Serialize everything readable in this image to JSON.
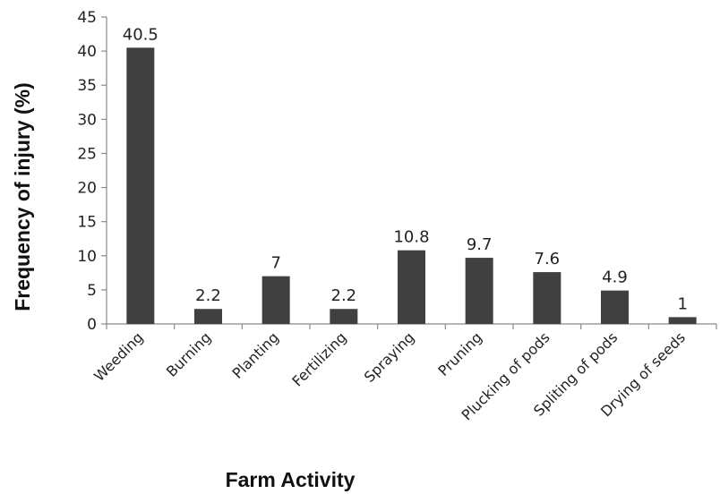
{
  "chart_data": {
    "type": "bar",
    "title": "",
    "xlabel": "Farm Activity",
    "ylabel": "Frequency of injury (%)",
    "categories": [
      "Weeding",
      "Burning",
      "Planting",
      "Fertilizing",
      "Spraying",
      "Pruning",
      "Plucking of pods",
      "Spliting of pods",
      "Drying of seeds"
    ],
    "values": [
      40.5,
      2.2,
      7,
      2.2,
      10.8,
      9.7,
      7.6,
      4.9,
      1
    ],
    "data_labels": [
      "40.5",
      "2.2",
      "7",
      "2.2",
      "10.8",
      "9.7",
      "7.6",
      "4.9",
      "1"
    ],
    "yticks": [
      "0",
      "5",
      "10",
      "15",
      "20",
      "25",
      "30",
      "35",
      "40",
      "45"
    ],
    "ylim": [
      0,
      45
    ],
    "grid": false,
    "legend": "none",
    "bar_color": "#404040"
  }
}
